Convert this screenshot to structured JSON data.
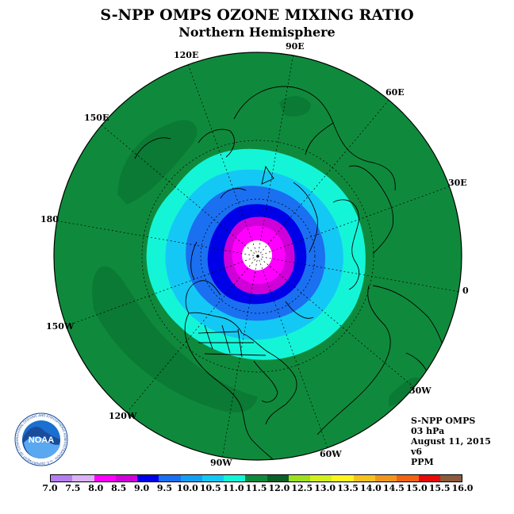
{
  "header": {
    "title": "S-NPP OMPS OZONE MIXING RATIO",
    "subtitle": "Northern Hemisphere"
  },
  "map": {
    "projection": "north-polar-stereographic",
    "longitude_labels": [
      "90E",
      "60E",
      "30E",
      "0",
      "30W",
      "60W",
      "90W",
      "120W",
      "150W",
      "180",
      "150E",
      "120E"
    ],
    "colors": {
      "ocean_outline": "#000000",
      "grid": "#000000"
    }
  },
  "info": {
    "instrument": "S-NPP OMPS",
    "level": "03 hPa",
    "date": "August 11, 2015",
    "version": "v6",
    "units": "PPM"
  },
  "logo": {
    "text": "NOAA",
    "ring_text": "NATIONAL OCEANIC AND ATMOSPHERIC ADMINISTRATION · U.S. DEPARTMENT OF COMMERCE"
  },
  "colorbar": {
    "ticks": [
      "7.0",
      "7.5",
      "8.0",
      "8.5",
      "9.0",
      "9.5",
      "10.0",
      "10.5",
      "11.0",
      "11.5",
      "12.0",
      "12.5",
      "13.0",
      "13.5",
      "14.0",
      "14.5",
      "15.0",
      "15.5",
      "16.0"
    ],
    "colors": [
      "#b57ef0",
      "#d9b3f3",
      "#ff00ff",
      "#d000d8",
      "#0000e8",
      "#1a70f0",
      "#14a0f2",
      "#14c8f5",
      "#14f5d8",
      "#0f8a3c",
      "#0a5f28",
      "#9ee01e",
      "#d2f01e",
      "#fff51e",
      "#f5c31e",
      "#f0961e",
      "#f06414",
      "#e60a0a",
      "#8c5a3c"
    ]
  }
}
